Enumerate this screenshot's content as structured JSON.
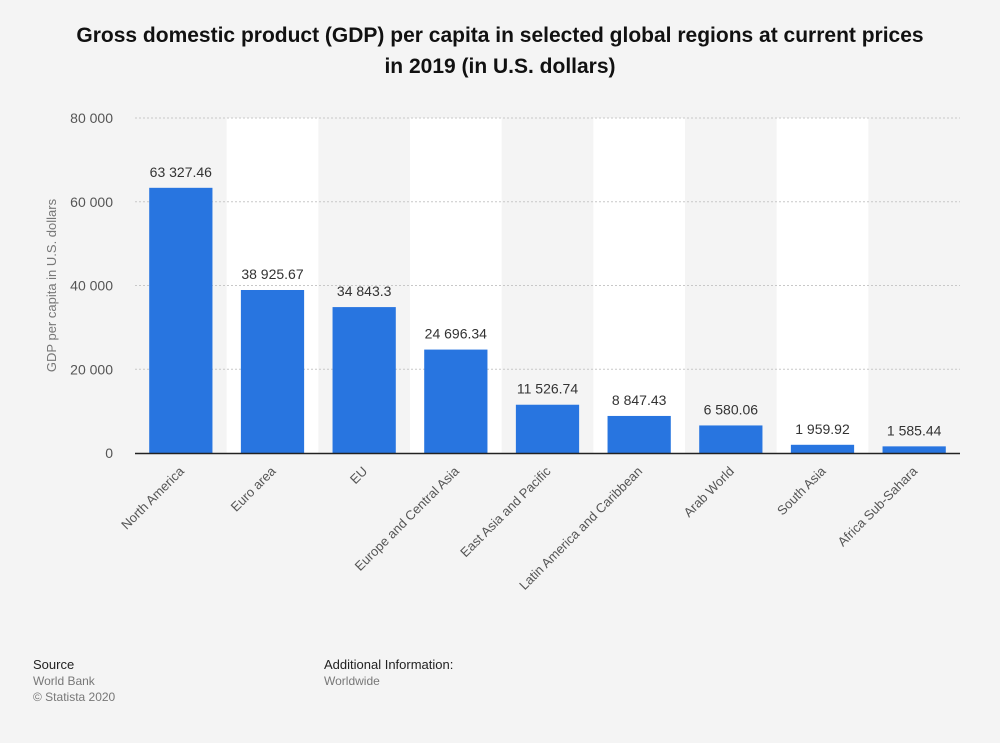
{
  "title_lines": [
    "Gross domestic product (GDP) per capita in selected global regions at current prices",
    "in 2019 (in U.S. dollars)"
  ],
  "chart_data": {
    "type": "bar",
    "title": "Gross domestic product (GDP) per capita in selected global regions at current prices in 2019 (in U.S. dollars)",
    "ylabel": "GDP per capita in U.S. dollars",
    "xlabel": "",
    "ylim": [
      0,
      80000
    ],
    "yticks": [
      0,
      20000,
      40000,
      60000,
      80000
    ],
    "ytick_labels": [
      "0",
      "20 000",
      "40 000",
      "60 000",
      "80 000"
    ],
    "grid": true,
    "categories": [
      "North America",
      "Euro area",
      "EU",
      "Europe and Central Asia",
      "East Asia and Pacific",
      "Latin America and Caribbean",
      "Arab World",
      "South Asia",
      "Africa Sub-Sahara"
    ],
    "values": [
      63327.46,
      38925.67,
      34843.3,
      24696.34,
      11526.74,
      8847.43,
      6580.06,
      1959.92,
      1585.44
    ],
    "value_labels": [
      "63 327.46",
      "38 925.67",
      "34 843.3",
      "24 696.34",
      "11 526.74",
      "8 847.43",
      "6 580.06",
      "1 959.92",
      "1 585.44"
    ],
    "bar_color": "#2875e0"
  },
  "footer": {
    "source_heading": "Source",
    "source_lines": [
      "World Bank",
      "© Statista 2020"
    ],
    "additional_heading": "Additional Information:",
    "additional_lines": [
      "Worldwide"
    ]
  }
}
